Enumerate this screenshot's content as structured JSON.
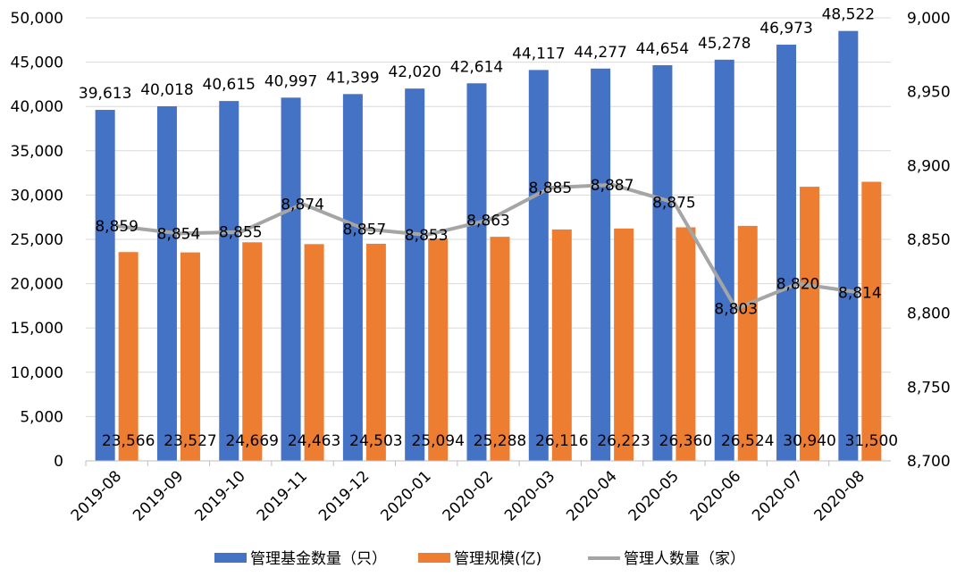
{
  "chart_data": {
    "type": "bar+line",
    "title": "",
    "categories": [
      "2019-08",
      "2019-09",
      "2019-10",
      "2019-11",
      "2019-12",
      "2020-01",
      "2020-02",
      "2020-03",
      "2020-04",
      "2020-05",
      "2020-06",
      "2020-07",
      "2020-08"
    ],
    "series": [
      {
        "name": "管理基金数量（只）",
        "type": "bar",
        "axis": "left",
        "color": "#4472C4",
        "values": [
          39613,
          40018,
          40615,
          40997,
          41399,
          42020,
          42614,
          44117,
          44277,
          44654,
          45278,
          46973,
          48522
        ],
        "labels": [
          "39,613",
          "40,018",
          "40,615",
          "40,997",
          "41,399",
          "42,020",
          "42,614",
          "44,117",
          "44,277",
          "44,654",
          "45,278",
          "46,973",
          "48,522"
        ]
      },
      {
        "name": "管理规模(亿)",
        "type": "bar",
        "axis": "left",
        "color": "#ED7D31",
        "values": [
          23566,
          23527,
          24669,
          24463,
          24503,
          25094,
          25288,
          26116,
          26223,
          26360,
          26524,
          30940,
          31500
        ],
        "labels": [
          "23,566",
          "23,527",
          "24,669",
          "24,463",
          "24,503",
          "25,094",
          "25,288",
          "26,116",
          "26,223",
          "26,360",
          "26,524",
          "30,940",
          "31,500"
        ]
      },
      {
        "name": "管理人数量（家）",
        "type": "line",
        "axis": "right",
        "color": "#A5A5A5",
        "values": [
          8859,
          8854,
          8855,
          8874,
          8857,
          8853,
          8863,
          8885,
          8887,
          8875,
          8803,
          8820,
          8814
        ],
        "labels": [
          "8,859",
          "8,854",
          "8,855",
          "8,874",
          "8,857",
          "8,853",
          "8,863",
          "8,885",
          "8,887",
          "8,875",
          "8,803",
          "8,820",
          "8,814"
        ]
      }
    ],
    "left_axis": {
      "ylim": [
        0,
        50000
      ],
      "ticks": [
        0,
        5000,
        10000,
        15000,
        20000,
        25000,
        30000,
        35000,
        40000,
        45000,
        50000
      ],
      "tick_labels": [
        "0",
        "5,000",
        "10,000",
        "15,000",
        "20,000",
        "25,000",
        "30,000",
        "35,000",
        "40,000",
        "45,000",
        "50,000"
      ]
    },
    "right_axis": {
      "ylim": [
        8700,
        9000
      ],
      "ticks": [
        8700,
        8750,
        8800,
        8850,
        8900,
        8950,
        9000
      ],
      "tick_labels": [
        "8,700",
        "8,750",
        "8,800",
        "8,850",
        "8,900",
        "8,950",
        "9,000"
      ]
    },
    "grid": true,
    "legend_position": "bottom"
  }
}
